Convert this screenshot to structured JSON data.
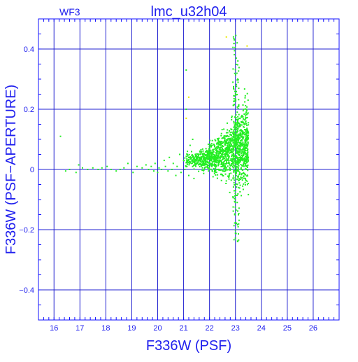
{
  "colors": {
    "axis": "#1010ff",
    "grid": "#2020d0",
    "points": "#22ee22",
    "outliers": "#e8e800",
    "text": "#2020ee"
  },
  "chart_data": {
    "type": "scatter",
    "title": "lmc_u32h04",
    "corner_label": "WF3",
    "xlabel": "F336W (PSF)",
    "ylabel": "F336W (PSF−APERTURE)",
    "xlim": [
      15.4,
      27.0
    ],
    "ylim": [
      -0.5,
      0.5
    ],
    "x_ticks": [
      16,
      17,
      18,
      19,
      20,
      21,
      22,
      23,
      24,
      25,
      26
    ],
    "x_tick_labels": [
      "16",
      "17",
      "18",
      "19",
      "20",
      "21",
      "22",
      "23",
      "24",
      "25",
      "26"
    ],
    "y_ticks": [
      -0.4,
      -0.2,
      0,
      0.2,
      0.4
    ],
    "y_tick_labels": [
      "−0.4",
      "−0.2",
      "0",
      "0.2",
      "0.4"
    ],
    "grid": true,
    "series": [
      {
        "values": [
          [
            16.25,
            0.11
          ],
          [
            16.45,
            -0.005
          ],
          [
            16.6,
            0.0
          ],
          [
            16.85,
            -0.01
          ],
          [
            16.95,
            0.015
          ],
          [
            17.1,
            0.005
          ],
          [
            17.3,
            0.0
          ],
          [
            17.5,
            0.005
          ],
          [
            17.7,
            0.0
          ],
          [
            17.85,
            0.005
          ],
          [
            18.05,
            0.01
          ],
          [
            18.2,
            0.0
          ],
          [
            18.4,
            -0.005
          ],
          [
            18.55,
            0.0
          ],
          [
            18.7,
            0.005
          ],
          [
            18.85,
            0.02
          ],
          [
            19.05,
            -0.01
          ],
          [
            19.2,
            0.01
          ],
          [
            19.4,
            0.005
          ],
          [
            19.55,
            0.015
          ],
          [
            19.65,
            0.0
          ],
          [
            19.75,
            0.01
          ],
          [
            19.85,
            -0.005
          ],
          [
            19.9,
            0.02
          ],
          [
            20.0,
            -0.01
          ],
          [
            20.05,
            0.005
          ],
          [
            20.15,
            0.0
          ],
          [
            20.25,
            0.03
          ],
          [
            20.3,
            0.01
          ],
          [
            20.4,
            -0.005
          ],
          [
            20.45,
            0.04
          ],
          [
            20.55,
            0.0
          ],
          [
            20.6,
            0.02
          ],
          [
            20.7,
            -0.02
          ],
          [
            20.75,
            0.01
          ],
          [
            20.85,
            0.05
          ],
          [
            20.9,
            -0.01
          ],
          [
            21.0,
            0.03
          ],
          [
            21.05,
            0.0
          ],
          [
            21.1,
            0.2
          ],
          [
            21.1,
            0.33
          ],
          [
            21.15,
            0.06
          ],
          [
            21.2,
            -0.02
          ],
          [
            21.25,
            0.08
          ],
          [
            21.3,
            0.02
          ],
          [
            21.35,
            0.1
          ],
          [
            21.4,
            -0.03
          ],
          [
            21.45,
            0.05
          ]
        ]
      }
    ],
    "dense_cloud": {
      "x_range": [
        21.0,
        23.5
      ],
      "y_center": 0.03,
      "y_max": 0.45,
      "y_min": -0.25,
      "approx_points": 1400
    }
  }
}
